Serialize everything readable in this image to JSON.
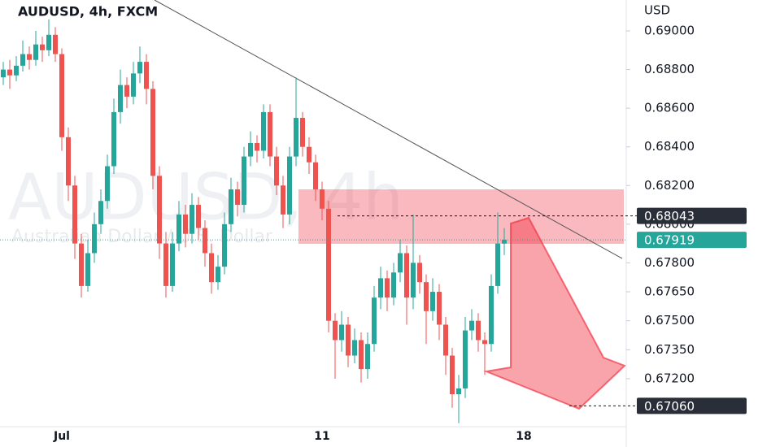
{
  "chart_data": {
    "type": "candlestick",
    "title": "AUDUSD, 4h, FXCM",
    "watermark": "AUDUSD, 4h",
    "watermark_subtitle": "Australian Dollar / U.S. Dollar",
    "y_unit": "USD",
    "up_color": "#26a69a",
    "down_color": "#ef5350",
    "categories": [
      null,
      null,
      null,
      null,
      null,
      null,
      null,
      null,
      null,
      "Jul",
      null,
      null,
      null,
      null,
      null,
      null,
      null,
      null,
      null,
      null,
      null,
      null,
      null,
      null,
      null,
      null,
      null,
      null,
      null,
      null,
      null,
      null,
      null,
      null,
      null,
      null,
      null,
      null,
      null,
      null,
      null,
      null,
      null,
      null,
      null,
      null,
      null,
      null,
      null,
      "11",
      null,
      null,
      null,
      null,
      null,
      null,
      null,
      null,
      null,
      null,
      null,
      null,
      null,
      null,
      null,
      null,
      null,
      null,
      null,
      null,
      null,
      null,
      null,
      null,
      null,
      null,
      null,
      null,
      null,
      null,
      "18",
      null,
      null,
      null,
      null,
      null,
      null,
      null,
      null,
      null,
      null,
      null,
      null,
      null,
      null,
      null
    ],
    "ohlc": [
      [
        0.6876,
        0.6884,
        0.6872,
        0.688
      ],
      [
        0.688,
        0.6885,
        0.687,
        0.6877
      ],
      [
        0.6877,
        0.6887,
        0.6874,
        0.6882
      ],
      [
        0.6882,
        0.6895,
        0.6879,
        0.6888
      ],
      [
        0.6888,
        0.6892,
        0.688,
        0.6885
      ],
      [
        0.6885,
        0.69,
        0.6882,
        0.6893
      ],
      [
        0.6893,
        0.6897,
        0.6884,
        0.689
      ],
      [
        0.689,
        0.6906,
        0.6887,
        0.6898
      ],
      [
        0.6898,
        0.6902,
        0.6884,
        0.6888
      ],
      [
        0.6888,
        0.6891,
        0.6838,
        0.6845
      ],
      [
        0.6845,
        0.685,
        0.6812,
        0.682
      ],
      [
        0.682,
        0.6825,
        0.6782,
        0.679
      ],
      [
        0.679,
        0.6795,
        0.6762,
        0.6768
      ],
      [
        0.6768,
        0.6792,
        0.6765,
        0.6785
      ],
      [
        0.6785,
        0.6806,
        0.678,
        0.68
      ],
      [
        0.68,
        0.6818,
        0.6795,
        0.6812
      ],
      [
        0.6812,
        0.6836,
        0.6808,
        0.683
      ],
      [
        0.683,
        0.6865,
        0.6826,
        0.6858
      ],
      [
        0.6858,
        0.688,
        0.6852,
        0.6872
      ],
      [
        0.6872,
        0.6876,
        0.686,
        0.6866
      ],
      [
        0.6866,
        0.6884,
        0.6862,
        0.6878
      ],
      [
        0.6878,
        0.6892,
        0.6873,
        0.6884
      ],
      [
        0.6884,
        0.6888,
        0.6862,
        0.687
      ],
      [
        0.687,
        0.6874,
        0.6818,
        0.6825
      ],
      [
        0.6825,
        0.683,
        0.6782,
        0.679
      ],
      [
        0.679,
        0.6796,
        0.6762,
        0.6768
      ],
      [
        0.6768,
        0.6796,
        0.6765,
        0.679
      ],
      [
        0.679,
        0.6812,
        0.6786,
        0.6805
      ],
      [
        0.6805,
        0.681,
        0.6788,
        0.6795
      ],
      [
        0.6795,
        0.6816,
        0.679,
        0.681
      ],
      [
        0.681,
        0.6814,
        0.6792,
        0.6798
      ],
      [
        0.6798,
        0.6802,
        0.6778,
        0.6785
      ],
      [
        0.6785,
        0.679,
        0.6764,
        0.677
      ],
      [
        0.677,
        0.6784,
        0.6766,
        0.6778
      ],
      [
        0.6778,
        0.6806,
        0.6774,
        0.68
      ],
      [
        0.68,
        0.6824,
        0.6796,
        0.6818
      ],
      [
        0.6818,
        0.6822,
        0.6804,
        0.681
      ],
      [
        0.681,
        0.684,
        0.6806,
        0.6835
      ],
      [
        0.6835,
        0.6848,
        0.683,
        0.6842
      ],
      [
        0.6842,
        0.6846,
        0.6832,
        0.6838
      ],
      [
        0.6838,
        0.6862,
        0.6834,
        0.6858
      ],
      [
        0.6858,
        0.6862,
        0.683,
        0.6835
      ],
      [
        0.6835,
        0.684,
        0.6815,
        0.682
      ],
      [
        0.682,
        0.6825,
        0.6798,
        0.6805
      ],
      [
        0.6805,
        0.684,
        0.68,
        0.6835
      ],
      [
        0.6835,
        0.6876,
        0.683,
        0.6855
      ],
      [
        0.6855,
        0.6858,
        0.6835,
        0.684
      ],
      [
        0.684,
        0.6845,
        0.6826,
        0.6832
      ],
      [
        0.6832,
        0.6836,
        0.6812,
        0.6818
      ],
      [
        0.6818,
        0.6822,
        0.6802,
        0.6808
      ],
      [
        0.6808,
        0.6812,
        0.6744,
        0.675
      ],
      [
        0.675,
        0.6754,
        0.672,
        0.674
      ],
      [
        0.674,
        0.6755,
        0.6734,
        0.6748
      ],
      [
        0.6748,
        0.6752,
        0.6726,
        0.6732
      ],
      [
        0.6732,
        0.6746,
        0.6728,
        0.674
      ],
      [
        0.674,
        0.6744,
        0.6718,
        0.6725
      ],
      [
        0.6725,
        0.6744,
        0.672,
        0.6738
      ],
      [
        0.6738,
        0.6768,
        0.6734,
        0.6762
      ],
      [
        0.6762,
        0.6778,
        0.6756,
        0.6772
      ],
      [
        0.6772,
        0.6776,
        0.6755,
        0.6762
      ],
      [
        0.6762,
        0.678,
        0.6758,
        0.6775
      ],
      [
        0.6775,
        0.6792,
        0.677,
        0.6785
      ],
      [
        0.6785,
        0.6789,
        0.6748,
        0.6762
      ],
      [
        0.6762,
        0.6805,
        0.6756,
        0.678
      ],
      [
        0.678,
        0.6784,
        0.6764,
        0.677
      ],
      [
        0.677,
        0.6774,
        0.6738,
        0.6755
      ],
      [
        0.6755,
        0.6772,
        0.675,
        0.6765
      ],
      [
        0.6765,
        0.6769,
        0.674,
        0.6748
      ],
      [
        0.6748,
        0.6752,
        0.6722,
        0.6732
      ],
      [
        0.6732,
        0.6736,
        0.6705,
        0.6712
      ],
      [
        0.6712,
        0.6722,
        0.6697,
        0.6715
      ],
      [
        0.6715,
        0.6752,
        0.671,
        0.6745
      ],
      [
        0.6745,
        0.6756,
        0.674,
        0.675
      ],
      [
        0.675,
        0.6754,
        0.6734,
        0.674
      ],
      [
        0.674,
        0.6744,
        0.6722,
        0.6738
      ],
      [
        0.6738,
        0.6774,
        0.6734,
        0.6768
      ],
      [
        0.6768,
        0.6806,
        0.6764,
        0.679
      ],
      [
        0.679,
        0.6798,
        0.6784,
        0.67919
      ],
      null,
      null,
      null,
      null,
      null,
      null,
      null,
      null,
      null,
      null,
      null,
      null,
      null,
      null,
      null,
      null,
      null,
      null
    ],
    "ylim": [
      0.66952,
      0.6916
    ],
    "yticks": [
      {
        "value": 0.69,
        "label": "0.69000"
      },
      {
        "value": 0.688,
        "label": "0.68800"
      },
      {
        "value": 0.686,
        "label": "0.68600"
      },
      {
        "value": 0.684,
        "label": "0.68400"
      },
      {
        "value": 0.682,
        "label": "0.68200"
      },
      {
        "value": 0.68,
        "label": "0.68000"
      },
      {
        "value": 0.678,
        "label": "0.67800"
      },
      {
        "value": 0.6765,
        "label": "0.67650"
      },
      {
        "value": 0.675,
        "label": "0.67500"
      },
      {
        "value": 0.6735,
        "label": "0.67350"
      },
      {
        "value": 0.672,
        "label": "0.67200"
      }
    ],
    "marked_prices": [
      0.68043,
      {
        "value": 0.6706,
        "label": "0.67060"
      }
    ],
    "last_price": 0.67919,
    "last_price_color": "#26a69a"
  }
}
